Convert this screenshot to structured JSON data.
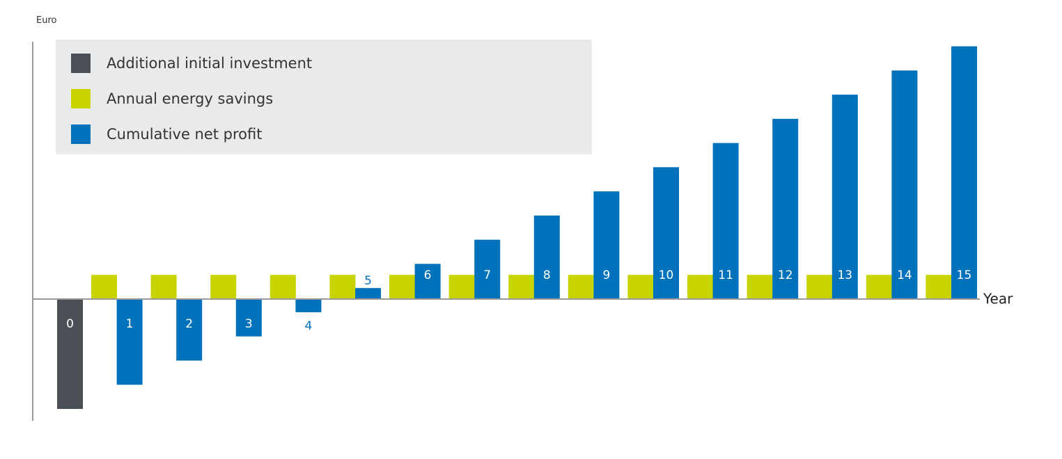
{
  "chart_data": {
    "type": "bar",
    "ylabel": "Euro",
    "xlabel": "Year",
    "categories": [
      "0",
      "1",
      "2",
      "3",
      "4",
      "5",
      "6",
      "7",
      "8",
      "9",
      "10",
      "11",
      "12",
      "13",
      "14",
      "15"
    ],
    "series": [
      {
        "name": "Additional initial investment",
        "color": "#4a5056",
        "values": [
          -5.0,
          null,
          null,
          null,
          null,
          null,
          null,
          null,
          null,
          null,
          null,
          null,
          null,
          null,
          null,
          null
        ]
      },
      {
        "name": "Annual energy savings",
        "color": "#c8d400",
        "values": [
          null,
          1.1,
          1.1,
          1.1,
          1.1,
          1.1,
          1.1,
          1.1,
          1.1,
          1.1,
          1.1,
          1.1,
          1.1,
          1.1,
          1.1,
          1.1
        ]
      },
      {
        "name": "Cumulative net profit",
        "color": "#0072bb",
        "values": [
          null,
          -3.9,
          -2.8,
          -1.7,
          -0.6,
          0.5,
          1.6,
          2.7,
          3.8,
          4.9,
          6.0,
          7.1,
          8.2,
          9.3,
          10.4,
          11.5
        ]
      }
    ],
    "legend": "top-left",
    "grid": false
  }
}
